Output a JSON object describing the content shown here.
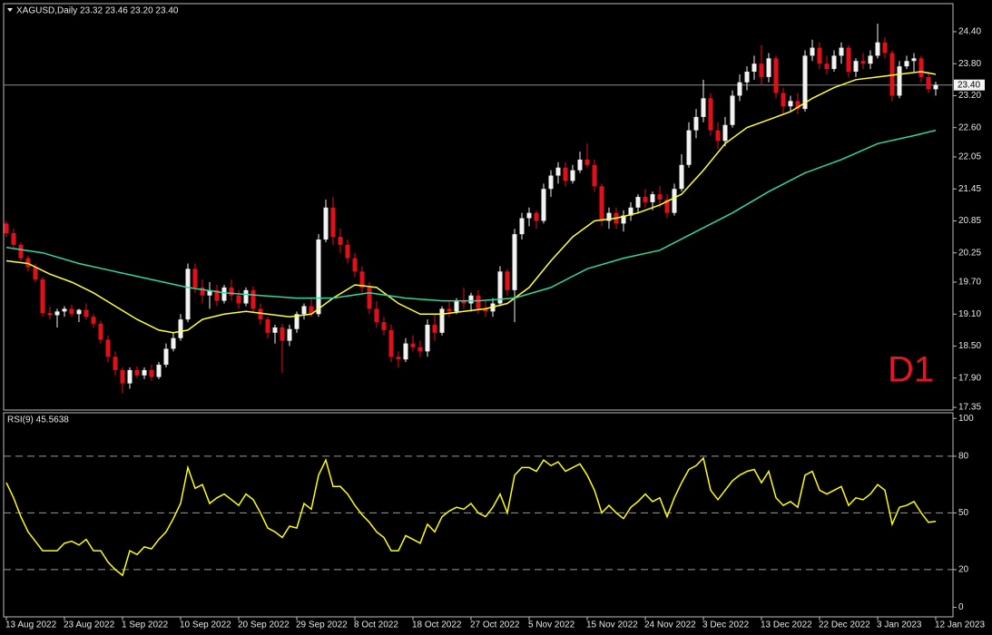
{
  "chart_data": [
    {
      "type": "candlestick",
      "title": "XAGUSD,Daily  23.32 23.46 23.20 23.40",
      "annotation": "D1",
      "up_color": "#f2f2f2",
      "down_color": "#e0101a",
      "ohlc": [
        [
          20.8,
          20.85,
          20.55,
          20.62
        ],
        [
          20.62,
          20.7,
          20.35,
          20.4
        ],
        [
          20.4,
          20.45,
          20.1,
          20.15
        ],
        [
          20.15,
          20.2,
          19.9,
          19.98
        ],
        [
          19.98,
          20.05,
          19.7,
          19.75
        ],
        [
          19.75,
          19.8,
          19.05,
          19.12
        ],
        [
          19.12,
          19.25,
          19.0,
          19.08
        ],
        [
          19.08,
          19.2,
          18.85,
          19.15
        ],
        [
          19.15,
          19.25,
          19.05,
          19.2
        ],
        [
          19.2,
          19.28,
          19.05,
          19.1
        ],
        [
          19.1,
          19.2,
          18.95,
          19.18
        ],
        [
          19.18,
          19.3,
          19.0,
          19.05
        ],
        [
          19.05,
          19.1,
          18.85,
          18.92
        ],
        [
          18.92,
          18.98,
          18.55,
          18.62
        ],
        [
          18.62,
          18.7,
          18.2,
          18.3
        ],
        [
          18.3,
          18.4,
          17.95,
          18.05
        ],
        [
          18.05,
          18.1,
          17.62,
          17.8
        ],
        [
          17.8,
          18.1,
          17.7,
          18.05
        ],
        [
          18.05,
          18.12,
          17.9,
          17.95
        ],
        [
          17.95,
          18.1,
          17.88,
          18.05
        ],
        [
          18.05,
          18.15,
          17.85,
          17.92
        ],
        [
          17.92,
          18.2,
          17.88,
          18.15
        ],
        [
          18.15,
          18.55,
          18.1,
          18.45
        ],
        [
          18.45,
          18.75,
          18.4,
          18.65
        ],
        [
          18.65,
          19.1,
          18.6,
          19.0
        ],
        [
          19.0,
          20.05,
          18.95,
          19.95
        ],
        [
          19.95,
          20.05,
          19.5,
          19.6
        ],
        [
          19.6,
          19.75,
          19.3,
          19.45
        ],
        [
          19.45,
          19.7,
          19.2,
          19.55
        ],
        [
          19.55,
          19.65,
          19.25,
          19.35
        ],
        [
          19.35,
          19.65,
          19.3,
          19.6
        ],
        [
          19.6,
          19.75,
          19.35,
          19.45
        ],
        [
          19.45,
          19.55,
          19.2,
          19.3
        ],
        [
          19.3,
          19.6,
          19.25,
          19.55
        ],
        [
          19.55,
          19.62,
          19.15,
          19.2
        ],
        [
          19.2,
          19.3,
          18.9,
          19.0
        ],
        [
          19.0,
          19.05,
          18.65,
          18.75
        ],
        [
          18.75,
          18.9,
          18.55,
          18.85
        ],
        [
          18.85,
          18.92,
          18.0,
          18.6
        ],
        [
          18.6,
          18.9,
          18.5,
          18.82
        ],
        [
          18.82,
          19.15,
          18.75,
          19.1
        ],
        [
          19.1,
          19.3,
          19.0,
          19.25
        ],
        [
          19.25,
          19.4,
          19.05,
          19.1
        ],
        [
          19.1,
          20.6,
          19.05,
          20.5
        ],
        [
          20.5,
          21.25,
          20.45,
          21.1
        ],
        [
          21.1,
          21.3,
          20.4,
          20.55
        ],
        [
          20.55,
          20.7,
          20.25,
          20.4
        ],
        [
          20.4,
          20.5,
          20.05,
          20.15
        ],
        [
          20.15,
          20.25,
          19.8,
          19.9
        ],
        [
          19.9,
          20.0,
          19.5,
          19.6
        ],
        [
          19.6,
          19.7,
          19.1,
          19.2
        ],
        [
          19.2,
          19.35,
          18.85,
          18.95
        ],
        [
          18.95,
          19.05,
          18.7,
          18.8
        ],
        [
          18.8,
          18.9,
          18.2,
          18.3
        ],
        [
          18.3,
          18.4,
          18.1,
          18.25
        ],
        [
          18.25,
          18.65,
          18.2,
          18.55
        ],
        [
          18.55,
          18.7,
          18.4,
          18.48
        ],
        [
          18.48,
          18.6,
          18.3,
          18.4
        ],
        [
          18.4,
          19.0,
          18.3,
          18.9
        ],
        [
          18.9,
          19.1,
          18.6,
          18.75
        ],
        [
          18.75,
          19.25,
          18.7,
          19.2
        ],
        [
          19.2,
          19.35,
          19.05,
          19.15
        ],
        [
          19.15,
          19.4,
          19.1,
          19.35
        ],
        [
          19.35,
          19.6,
          19.2,
          19.3
        ],
        [
          19.3,
          19.5,
          19.15,
          19.45
        ],
        [
          19.45,
          19.55,
          19.1,
          19.2
        ],
        [
          19.2,
          19.35,
          19.05,
          19.15
        ],
        [
          19.15,
          19.4,
          19.05,
          19.3
        ],
        [
          19.3,
          20.0,
          19.25,
          19.9
        ],
        [
          19.9,
          19.95,
          19.45,
          19.55
        ],
        [
          19.55,
          20.7,
          18.95,
          20.6
        ],
        [
          20.6,
          21.0,
          20.5,
          20.9
        ],
        [
          20.9,
          21.1,
          20.75,
          21.0
        ],
        [
          21.0,
          21.05,
          20.7,
          20.85
        ],
        [
          20.85,
          21.55,
          20.8,
          21.45
        ],
        [
          21.45,
          21.8,
          21.3,
          21.7
        ],
        [
          21.7,
          21.95,
          21.55,
          21.85
        ],
        [
          21.85,
          21.95,
          21.5,
          21.6
        ],
        [
          21.6,
          21.9,
          21.55,
          21.8
        ],
        [
          21.8,
          22.15,
          21.75,
          22.0
        ],
        [
          22.0,
          22.3,
          21.85,
          21.9
        ],
        [
          21.9,
          22.0,
          21.4,
          21.5
        ],
        [
          21.5,
          21.55,
          20.75,
          20.85
        ],
        [
          20.85,
          21.1,
          20.7,
          21.0
        ],
        [
          21.0,
          21.1,
          20.7,
          20.8
        ],
        [
          20.8,
          21.05,
          20.65,
          20.95
        ],
        [
          20.95,
          21.2,
          20.85,
          21.1
        ],
        [
          21.1,
          21.35,
          21.0,
          21.3
        ],
        [
          21.3,
          21.45,
          21.1,
          21.2
        ],
        [
          21.2,
          21.4,
          21.05,
          21.35
        ],
        [
          21.35,
          21.5,
          21.1,
          21.25
        ],
        [
          21.25,
          21.35,
          20.9,
          21.0
        ],
        [
          21.0,
          21.55,
          20.95,
          21.45
        ],
        [
          21.45,
          22.1,
          21.4,
          21.9
        ],
        [
          21.9,
          22.7,
          21.85,
          22.55
        ],
        [
          22.55,
          22.95,
          22.4,
          22.8
        ],
        [
          22.8,
          23.5,
          22.7,
          23.15
        ],
        [
          23.15,
          23.25,
          22.45,
          22.55
        ],
        [
          22.55,
          22.7,
          22.2,
          22.35
        ],
        [
          22.35,
          22.8,
          22.25,
          22.65
        ],
        [
          22.65,
          23.3,
          22.6,
          23.2
        ],
        [
          23.2,
          23.6,
          23.1,
          23.45
        ],
        [
          23.45,
          23.75,
          23.3,
          23.65
        ],
        [
          23.65,
          23.95,
          23.5,
          23.8
        ],
        [
          23.8,
          24.15,
          23.4,
          23.55
        ],
        [
          23.55,
          24.0,
          23.45,
          23.9
        ],
        [
          23.9,
          23.95,
          23.15,
          23.25
        ],
        [
          23.25,
          23.35,
          22.85,
          23.0
        ],
        [
          23.0,
          23.2,
          22.9,
          23.1
        ],
        [
          23.1,
          23.25,
          22.85,
          22.95
        ],
        [
          22.95,
          24.05,
          22.9,
          23.95
        ],
        [
          23.95,
          24.25,
          23.85,
          24.1
        ],
        [
          24.1,
          24.2,
          23.7,
          23.8
        ],
        [
          23.8,
          23.95,
          23.6,
          23.7
        ],
        [
          23.7,
          24.05,
          23.65,
          23.95
        ],
        [
          23.95,
          24.2,
          23.8,
          24.1
        ],
        [
          24.1,
          24.15,
          23.55,
          23.65
        ],
        [
          23.65,
          23.9,
          23.55,
          23.85
        ],
        [
          23.85,
          24.0,
          23.7,
          23.8
        ],
        [
          23.8,
          24.05,
          23.7,
          23.95
        ],
        [
          23.95,
          24.55,
          23.9,
          24.2
        ],
        [
          24.2,
          24.3,
          23.9,
          24.0
        ],
        [
          24.0,
          24.05,
          23.1,
          23.2
        ],
        [
          23.2,
          23.85,
          23.15,
          23.75
        ],
        [
          23.75,
          23.95,
          23.7,
          23.85
        ],
        [
          23.85,
          24.0,
          23.65,
          23.9
        ],
        [
          23.9,
          23.95,
          23.45,
          23.55
        ],
        [
          23.55,
          23.65,
          23.25,
          23.32
        ],
        [
          23.32,
          23.46,
          23.2,
          23.4
        ]
      ],
      "series": [
        {
          "color": "#ffff33",
          "x": [
            0,
            3,
            6,
            9,
            12,
            15,
            18,
            21,
            23,
            25,
            27,
            30,
            33,
            36,
            39,
            42,
            45,
            48,
            51,
            54,
            57,
            60,
            63,
            66,
            69,
            72,
            75,
            78,
            81,
            84,
            87,
            90,
            93,
            96,
            99,
            102,
            105,
            108,
            111,
            114,
            117,
            120,
            123,
            126,
            128
          ],
          "values": [
            20.1,
            20.05,
            19.85,
            19.7,
            19.5,
            19.25,
            19.0,
            18.8,
            18.75,
            18.8,
            19.0,
            19.1,
            19.15,
            19.1,
            19.05,
            19.1,
            19.4,
            19.65,
            19.6,
            19.3,
            19.1,
            19.1,
            19.15,
            19.2,
            19.3,
            19.6,
            20.1,
            20.55,
            20.85,
            20.9,
            21.0,
            21.15,
            21.35,
            21.8,
            22.3,
            22.6,
            22.75,
            22.9,
            23.15,
            23.35,
            23.5,
            23.55,
            23.6,
            23.65,
            23.6
          ]
        },
        {
          "color": "#2ed8a0",
          "x": [
            0,
            5,
            10,
            15,
            20,
            25,
            30,
            35,
            40,
            45,
            50,
            55,
            60,
            65,
            70,
            75,
            80,
            85,
            90,
            95,
            100,
            105,
            110,
            115,
            120,
            125,
            128
          ],
          "values": [
            20.35,
            20.25,
            20.05,
            19.9,
            19.75,
            19.6,
            19.5,
            19.45,
            19.4,
            19.4,
            19.5,
            19.4,
            19.35,
            19.35,
            19.4,
            19.6,
            19.95,
            20.15,
            20.3,
            20.65,
            21.0,
            21.4,
            21.75,
            22.0,
            22.3,
            22.45,
            22.55
          ]
        }
      ],
      "current_price": {
        "value": 23.4,
        "label": "23.40"
      },
      "ylim": [
        17.3,
        24.91
      ],
      "yticks": [
        {
          "value": 24.4,
          "label": "24.40"
        },
        {
          "value": 23.8,
          "label": "23.80"
        },
        {
          "value": 23.2,
          "label": "23.20"
        },
        {
          "value": 22.6,
          "label": "22.60"
        },
        {
          "value": 22.05,
          "label": "22.05"
        },
        {
          "value": 21.45,
          "label": "21.45"
        },
        {
          "value": 20.85,
          "label": "20.85"
        },
        {
          "value": 20.25,
          "label": "20.25"
        },
        {
          "value": 19.7,
          "label": "19.70"
        },
        {
          "value": 19.1,
          "label": "19.10"
        },
        {
          "value": 18.5,
          "label": "18.50"
        },
        {
          "value": 17.9,
          "label": "17.90"
        },
        {
          "value": 17.35,
          "label": "17.35"
        }
      ],
      "xticks": [
        {
          "value": 0,
          "label": "13 Aug 2022"
        },
        {
          "value": 8,
          "label": "23 Aug 2022"
        },
        {
          "value": 16,
          "label": "1 Sep 2022"
        },
        {
          "value": 24,
          "label": "10 Sep 2022"
        },
        {
          "value": 32,
          "label": "20 Sep 2022"
        },
        {
          "value": 40,
          "label": "29 Sep 2022"
        },
        {
          "value": 48,
          "label": "8 Oct 2022"
        },
        {
          "value": 56,
          "label": "18 Oct 2022"
        },
        {
          "value": 64,
          "label": "27 Oct 2022"
        },
        {
          "value": 72,
          "label": "5 Nov 2022"
        },
        {
          "value": 80,
          "label": "15 Nov 2022"
        },
        {
          "value": 88,
          "label": "24 Nov 2022"
        },
        {
          "value": 96,
          "label": "3 Dec 2022"
        },
        {
          "value": 104,
          "label": "13 Dec 2022"
        },
        {
          "value": 112,
          "label": "22 Dec 2022"
        },
        {
          "value": 120,
          "label": "3 Jan 2023"
        },
        {
          "value": 128,
          "label": "12 Jan 2023"
        }
      ]
    },
    {
      "type": "line",
      "title": "RSI(9) 45.5638",
      "color": "#ffff00",
      "values": [
        66,
        58,
        48,
        40,
        35,
        30,
        30,
        30,
        34,
        35,
        33,
        36,
        30,
        30,
        24,
        20,
        17,
        30,
        28,
        32,
        31,
        36,
        40,
        47,
        55,
        74,
        63,
        65,
        55,
        58,
        60,
        57,
        54,
        60,
        57,
        50,
        42,
        40,
        37,
        43,
        42,
        55,
        52,
        70,
        78,
        64,
        64,
        60,
        54,
        49,
        45,
        40,
        37,
        30,
        30,
        38,
        36,
        34,
        44,
        40,
        48,
        51,
        53,
        52,
        55,
        50,
        48,
        53,
        60,
        50,
        70,
        74,
        74,
        72,
        78,
        75,
        77,
        72,
        74,
        76,
        70,
        62,
        50,
        54,
        50,
        47,
        53,
        56,
        60,
        56,
        58,
        48,
        58,
        66,
        73,
        75,
        79,
        62,
        57,
        62,
        67,
        70,
        72,
        73,
        66,
        72,
        58,
        54,
        56,
        53,
        70,
        72,
        62,
        60,
        62,
        64,
        54,
        58,
        57,
        60,
        65,
        62,
        44,
        53,
        54,
        56,
        50,
        45,
        45.5638
      ],
      "ylim": [
        -5,
        103
      ],
      "yticks": [
        0,
        20,
        50,
        80,
        100
      ],
      "levels": [
        20,
        50,
        80
      ]
    }
  ]
}
